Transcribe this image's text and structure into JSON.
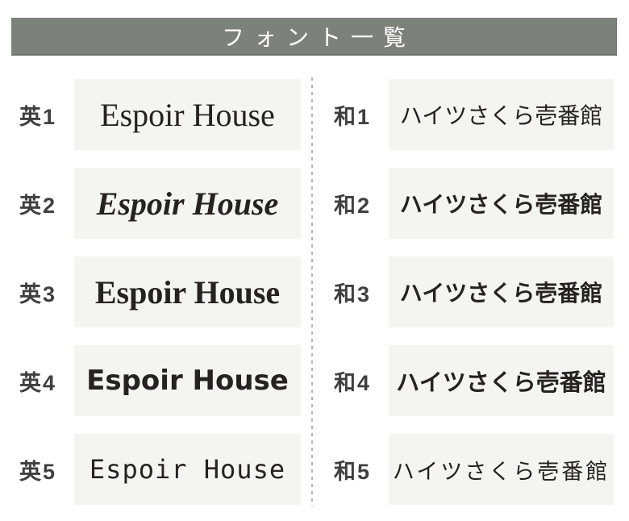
{
  "header": {
    "title": "フォント一覧"
  },
  "columns": [
    {
      "id": "english-fonts",
      "rows": [
        {
          "label": "英1",
          "sample": "Espoir House",
          "style": "serif-regular"
        },
        {
          "label": "英2",
          "sample": "Espoir House",
          "style": "serif-bold-italic"
        },
        {
          "label": "英3",
          "sample": "Espoir House",
          "style": "serif-bold"
        },
        {
          "label": "英4",
          "sample": "Espoir House",
          "style": "sans-bold"
        },
        {
          "label": "英5",
          "sample": "Espoir House",
          "style": "mono-light"
        }
      ]
    },
    {
      "id": "japanese-fonts",
      "rows": [
        {
          "label": "和1",
          "sample": "ハイツさくら壱番館",
          "style": "gothic-medium"
        },
        {
          "label": "和2",
          "sample": "ハイツさくら壱番館",
          "style": "gothic-round-bold"
        },
        {
          "label": "和3",
          "sample": "ハイツさくら壱番館",
          "style": "mincho"
        },
        {
          "label": "和4",
          "sample": "ハイツさくら壱番館",
          "style": "gothic-bold"
        },
        {
          "label": "和5",
          "sample": "ハイツさくら壱番館",
          "style": "handwriting-light"
        }
      ]
    }
  ],
  "colors": {
    "header_bg": "#7d817b",
    "header_text": "#ffffff",
    "sample_box_bg": "#f4f4f2",
    "label_text": "#3f3f3f",
    "sample_text": "#262220",
    "divider": "#b3b3b3",
    "page_bg": "#ffffff"
  }
}
